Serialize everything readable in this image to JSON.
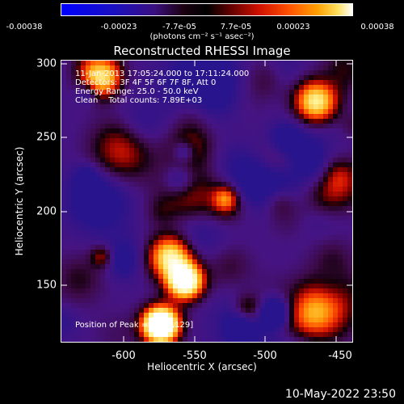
{
  "colorbar": {
    "tick_labels": [
      "-0.00038",
      "-0.00023",
      "-7.7e-05",
      "7.7e-05",
      "0.00023",
      "0.00038"
    ],
    "units": "(photons cm⁻² s⁻¹ asec⁻²)"
  },
  "title": "Reconstructed RHESSI Image",
  "annotations": {
    "time_range": "11-Jan-2013 17:05:24.000 to 17:11:24.000",
    "detectors": "Detectors: 3F 4F 5F 6F 7F 8F, Att 0",
    "energy": "Energy Range: 25.0 - 50.0 keV",
    "clean": "Clean    Total counts: 7.89E+03",
    "peak": "Position of Peak = [-579,129]"
  },
  "axes": {
    "xlabel": "Heliocentric X (arcsec)",
    "ylabel": "Heliocentric Y (arcsec)",
    "xticks": [
      "-600",
      "-550",
      "-500",
      "-450"
    ],
    "yticks": [
      "300",
      "250",
      "200",
      "150"
    ],
    "xlim": [
      -645,
      -450
    ],
    "ylim": [
      110,
      305
    ]
  },
  "footer": {
    "timestamp": "10-May-2022 23:50"
  }
}
